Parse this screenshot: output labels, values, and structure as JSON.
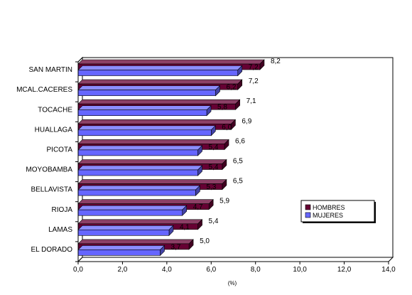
{
  "chart_data": {
    "type": "bar",
    "orientation": "horizontal",
    "style": "3d",
    "title": "",
    "xlabel": "(%)",
    "ylabel": "",
    "xlim": [
      0,
      14
    ],
    "xticks": [
      "0,0",
      "2,0",
      "4,0",
      "6,0",
      "8,0",
      "10,0",
      "12,0",
      "14,0"
    ],
    "grid": false,
    "legend_position": "right",
    "categories": [
      "SAN MARTIN",
      "MCAL.CACERES",
      "TOCACHE",
      "HUALLAGA",
      "PICOTA",
      "MOYOBAMBA",
      "BELLAVISTA",
      "RIOJA",
      "LAMAS",
      "EL DORADO"
    ],
    "series": [
      {
        "name": "HOMBRES",
        "color": "#660033",
        "values": [
          8.2,
          7.2,
          7.1,
          6.9,
          6.6,
          6.5,
          6.5,
          5.9,
          5.4,
          5.0
        ],
        "labels": [
          "8,2",
          "7,2",
          "7,1",
          "6,9",
          "6,6",
          "6,5",
          "6,5",
          "5,9",
          "5,4",
          "5,0"
        ]
      },
      {
        "name": "MUJERES",
        "color": "#6666ff",
        "values": [
          7.2,
          6.2,
          5.8,
          6.0,
          5.4,
          5.4,
          5.3,
          4.7,
          4.1,
          3.7
        ],
        "labels": [
          "7,2",
          "6,2",
          "5,8",
          "6,0",
          "5,4",
          "5,4",
          "5,3",
          "4,7",
          "4,1",
          "3,7"
        ]
      }
    ]
  }
}
